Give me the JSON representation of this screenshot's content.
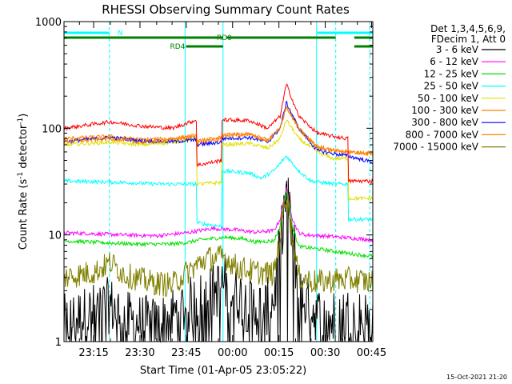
{
  "chart_data": {
    "type": "line",
    "title": "RHESSI Observing Summary Count Rates",
    "xlabel": "Start Time (01-Apr-05 23:05:22)",
    "ylabel_parts": [
      "Count Rate (s",
      "-1",
      " detector",
      "-1",
      ")"
    ],
    "yscale": "log",
    "ylim": [
      1,
      1000
    ],
    "xlim_minutes": [
      0,
      100
    ],
    "y_ticks": [
      {
        "value": 1,
        "label": "1"
      },
      {
        "value": 10,
        "label": "10"
      },
      {
        "value": 100,
        "label": "100"
      },
      {
        "value": 1000,
        "label": "1000"
      }
    ],
    "x_ticks": [
      {
        "t": 9.6,
        "label": "23:15"
      },
      {
        "t": 24.6,
        "label": "23:30"
      },
      {
        "t": 39.6,
        "label": "23:45"
      },
      {
        "t": 54.6,
        "label": "00:00"
      },
      {
        "t": 69.6,
        "label": "00:15"
      },
      {
        "t": 84.6,
        "label": "00:30"
      },
      {
        "t": 99.6,
        "label": "00:45"
      }
    ],
    "legend_header": [
      "Det 1,3,4,5,6,9,",
      "FDecim 1, Att 0"
    ],
    "legend_position": "right",
    "series": [
      {
        "name": "3 - 6 keV",
        "color": "#000000",
        "noise": "extreme",
        "points": [
          [
            0,
            1.5
          ],
          [
            15,
            2.2
          ],
          [
            20,
            1.6
          ],
          [
            30,
            1.4
          ],
          [
            38,
            2.0
          ],
          [
            46,
            2.6
          ],
          [
            52,
            3.5
          ],
          [
            60,
            2.2
          ],
          [
            65,
            2.0
          ],
          [
            68,
            2.5
          ],
          [
            70,
            8
          ],
          [
            72,
            26
          ],
          [
            74,
            10
          ],
          [
            76,
            3
          ],
          [
            79,
            2.2
          ],
          [
            85,
            1.5
          ],
          [
            90,
            1.8
          ],
          [
            100,
            1.6
          ]
        ]
      },
      {
        "name": "6 - 12 keV",
        "color": "#ff00ff",
        "noise": "low",
        "points": [
          [
            0,
            10.5
          ],
          [
            20,
            10.0
          ],
          [
            30,
            9.8
          ],
          [
            40,
            10.5
          ],
          [
            48,
            11.5
          ],
          [
            55,
            11.2
          ],
          [
            62,
            10.6
          ],
          [
            68,
            11
          ],
          [
            70,
            14
          ],
          [
            72,
            28
          ],
          [
            74,
            14
          ],
          [
            76,
            10.5
          ],
          [
            78,
            10
          ],
          [
            84,
            9.8
          ],
          [
            90,
            9.5
          ],
          [
            96,
            9.2
          ],
          [
            100,
            9.0
          ]
        ]
      },
      {
        "name": "12 - 25 keV",
        "color": "#00e000",
        "noise": "low",
        "points": [
          [
            0,
            8.8
          ],
          [
            15,
            8.4
          ],
          [
            25,
            8.2
          ],
          [
            35,
            8.2
          ],
          [
            40,
            8.5
          ],
          [
            44,
            9.0
          ],
          [
            52,
            9.5
          ],
          [
            58,
            9.2
          ],
          [
            62,
            8.6
          ],
          [
            68,
            8.8
          ],
          [
            70,
            12
          ],
          [
            72,
            27
          ],
          [
            74,
            12
          ],
          [
            76,
            7.8
          ],
          [
            82,
            7.4
          ],
          [
            88,
            7.0
          ],
          [
            94,
            6.6
          ],
          [
            100,
            6.3
          ]
        ]
      },
      {
        "name": "25 - 50 keV",
        "color": "#00ffff",
        "noise": "low",
        "points": [
          [
            0,
            32
          ],
          [
            20,
            31
          ],
          [
            30,
            30
          ],
          [
            40,
            30
          ],
          [
            43,
            30
          ],
          [
            43,
            13
          ],
          [
            51,
            12
          ],
          [
            51,
            40
          ],
          [
            60,
            38
          ],
          [
            64,
            34
          ],
          [
            68,
            40
          ],
          [
            72,
            55
          ],
          [
            76,
            40
          ],
          [
            80,
            32
          ],
          [
            87,
            30
          ],
          [
            92,
            30
          ],
          [
            92,
            14
          ],
          [
            100,
            14
          ]
        ]
      },
      {
        "name": "50 - 100 keV",
        "color": "#e0e000",
        "noise": "low",
        "points": [
          [
            0,
            70
          ],
          [
            15,
            74
          ],
          [
            25,
            70
          ],
          [
            35,
            74
          ],
          [
            43,
            80
          ],
          [
            43,
            30
          ],
          [
            51,
            31
          ],
          [
            51,
            70
          ],
          [
            60,
            72
          ],
          [
            66,
            65
          ],
          [
            70,
            80
          ],
          [
            72,
            120
          ],
          [
            76,
            80
          ],
          [
            82,
            60
          ],
          [
            87,
            52
          ],
          [
            92,
            52
          ],
          [
            92,
            22
          ],
          [
            100,
            22
          ]
        ]
      },
      {
        "name": "100 - 300 keV",
        "color": "#ff8000",
        "noise": "low",
        "points": [
          [
            0,
            80
          ],
          [
            15,
            84
          ],
          [
            25,
            78
          ],
          [
            35,
            80
          ],
          [
            43,
            86
          ],
          [
            43,
            72
          ],
          [
            51,
            80
          ],
          [
            51,
            86
          ],
          [
            60,
            88
          ],
          [
            66,
            78
          ],
          [
            70,
            100
          ],
          [
            72,
            160
          ],
          [
            76,
            100
          ],
          [
            82,
            68
          ],
          [
            87,
            62
          ],
          [
            92,
            60
          ],
          [
            100,
            58
          ]
        ]
      },
      {
        "name": "300 - 800 keV",
        "color": "#0000ff",
        "noise": "low",
        "points": [
          [
            0,
            75
          ],
          [
            15,
            82
          ],
          [
            25,
            76
          ],
          [
            35,
            75
          ],
          [
            43,
            78
          ],
          [
            43,
            70
          ],
          [
            51,
            74
          ],
          [
            51,
            80
          ],
          [
            60,
            82
          ],
          [
            66,
            74
          ],
          [
            70,
            100
          ],
          [
            72,
            175
          ],
          [
            76,
            100
          ],
          [
            82,
            62
          ],
          [
            87,
            58
          ],
          [
            92,
            55
          ],
          [
            100,
            48
          ]
        ]
      },
      {
        "name": "800 - 7000 keV",
        "color": "#ff8000",
        "noise": "low",
        "points": [
          [
            0,
            75
          ],
          [
            15,
            80
          ],
          [
            25,
            74
          ],
          [
            35,
            78
          ],
          [
            43,
            84
          ],
          [
            43,
            76
          ],
          [
            51,
            82
          ],
          [
            51,
            86
          ],
          [
            60,
            87
          ],
          [
            66,
            76
          ],
          [
            70,
            100
          ],
          [
            72,
            160
          ],
          [
            76,
            100
          ],
          [
            82,
            66
          ],
          [
            87,
            62
          ],
          [
            92,
            60
          ],
          [
            100,
            58
          ]
        ]
      },
      {
        "name": "7000 - 15000 keV",
        "color": "#808000",
        "noise": "high",
        "points": [
          [
            0,
            4
          ],
          [
            10,
            4.5
          ],
          [
            15,
            5.5
          ],
          [
            20,
            4.2
          ],
          [
            28,
            3.6
          ],
          [
            35,
            3.4
          ],
          [
            40,
            4.5
          ],
          [
            46,
            6
          ],
          [
            52,
            6.2
          ],
          [
            56,
            5
          ],
          [
            62,
            4.5
          ],
          [
            68,
            4.3
          ],
          [
            70,
            10
          ],
          [
            72,
            26
          ],
          [
            74,
            9
          ],
          [
            76,
            4
          ],
          [
            82,
            3.6
          ],
          [
            88,
            3.8
          ],
          [
            94,
            3.8
          ],
          [
            100,
            3.6
          ]
        ]
      },
      {
        "name": "",
        "color": "#ff0000",
        "noise": "low",
        "points": [
          [
            0,
            100
          ],
          [
            15,
            115
          ],
          [
            25,
            105
          ],
          [
            35,
            100
          ],
          [
            43,
            120
          ],
          [
            43,
            45
          ],
          [
            51,
            50
          ],
          [
            51,
            120
          ],
          [
            60,
            118
          ],
          [
            66,
            100
          ],
          [
            70,
            130
          ],
          [
            72,
            260
          ],
          [
            76,
            130
          ],
          [
            82,
            90
          ],
          [
            87,
            84
          ],
          [
            92,
            80
          ],
          [
            92,
            32
          ],
          [
            100,
            32
          ]
        ]
      }
    ],
    "state_bars": [
      {
        "label": "N",
        "color": "#00ffff",
        "row": 0,
        "segments": [
          [
            0,
            14.7
          ],
          [
            82,
            100
          ]
        ]
      },
      {
        "label": "RD0",
        "color": "#008000",
        "row": 1,
        "segments": [
          [
            0,
            51.5
          ],
          [
            52.5,
            88
          ],
          [
            94,
            100
          ]
        ]
      },
      {
        "label": "RD4",
        "color": "#008000",
        "row": 2,
        "segments": [
          [
            39.5,
            51.5
          ],
          [
            94,
            100
          ]
        ]
      }
    ],
    "vlines": [
      {
        "t": 0.0,
        "style": "solid"
      },
      {
        "t": 14.7,
        "style": "dashed"
      },
      {
        "t": 39.2,
        "style": "solid"
      },
      {
        "t": 51.5,
        "style": "solid"
      },
      {
        "t": 81.8,
        "style": "solid"
      },
      {
        "t": 88.0,
        "style": "dashed"
      },
      {
        "t": 99.0,
        "style": "dashed"
      }
    ],
    "colors": {
      "vline": "#00ffff",
      "axis": "#000000"
    }
  },
  "footer_timestamp": "15-Oct-2021 21:20"
}
